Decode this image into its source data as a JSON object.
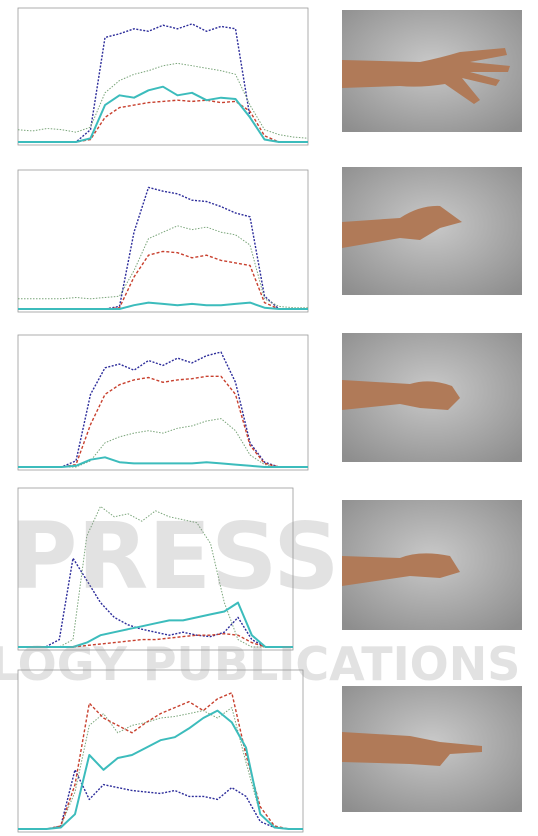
{
  "chart_data": [
    {
      "type": "line",
      "xlim": [
        0,
        20
      ],
      "ylim": [
        0,
        100
      ],
      "x": [
        0,
        1,
        2,
        3,
        4,
        5,
        6,
        7,
        8,
        9,
        10,
        11,
        12,
        13,
        14,
        15,
        16,
        17,
        18,
        19,
        20
      ],
      "series": [
        {
          "color": "#2c2c9a",
          "values": [
            0,
            0,
            0,
            0,
            0,
            10,
            85,
            88,
            92,
            90,
            95,
            92,
            96,
            90,
            94,
            92,
            20,
            2,
            0,
            0,
            0
          ]
        },
        {
          "color": "#7aa57a",
          "values": [
            10,
            9,
            11,
            10,
            8,
            12,
            40,
            50,
            55,
            58,
            62,
            64,
            62,
            60,
            58,
            55,
            30,
            10,
            6,
            4,
            3
          ]
        },
        {
          "color": "#c8402e",
          "values": [
            0,
            0,
            0,
            0,
            0,
            2,
            20,
            28,
            30,
            32,
            33,
            34,
            33,
            34,
            32,
            33,
            25,
            5,
            0,
            0,
            0
          ]
        },
        {
          "color": "#3cbcbc",
          "values": [
            0,
            0,
            0,
            0,
            0,
            3,
            30,
            38,
            36,
            42,
            45,
            38,
            40,
            34,
            36,
            35,
            20,
            2,
            0,
            0,
            0
          ]
        }
      ]
    },
    {
      "type": "line",
      "xlim": [
        0,
        20
      ],
      "ylim": [
        0,
        100
      ],
      "x": [
        0,
        1,
        2,
        3,
        4,
        5,
        6,
        7,
        8,
        9,
        10,
        11,
        12,
        13,
        14,
        15,
        16,
        17,
        18,
        19,
        20
      ],
      "series": [
        {
          "color": "#2c2c9a",
          "values": [
            0,
            0,
            0,
            0,
            0,
            0,
            0,
            2,
            60,
            95,
            92,
            90,
            85,
            84,
            80,
            75,
            72,
            10,
            0,
            0,
            0
          ]
        },
        {
          "color": "#7aa57a",
          "values": [
            8,
            8,
            8,
            8,
            9,
            8,
            9,
            10,
            30,
            55,
            60,
            65,
            62,
            64,
            60,
            58,
            50,
            8,
            2,
            1,
            1
          ]
        },
        {
          "color": "#c8402e",
          "values": [
            0,
            0,
            0,
            0,
            0,
            0,
            0,
            1,
            25,
            42,
            45,
            44,
            40,
            42,
            38,
            36,
            34,
            5,
            0,
            0,
            0
          ]
        },
        {
          "color": "#3cbcbc",
          "values": [
            0,
            0,
            0,
            0,
            0,
            0,
            0,
            0,
            3,
            5,
            4,
            3,
            4,
            3,
            3,
            4,
            5,
            1,
            0,
            0,
            0
          ]
        }
      ]
    },
    {
      "type": "line",
      "xlim": [
        0,
        20
      ],
      "ylim": [
        0,
        100
      ],
      "x": [
        0,
        1,
        2,
        3,
        4,
        5,
        6,
        7,
        8,
        9,
        10,
        11,
        12,
        13,
        14,
        15,
        16,
        17,
        18,
        19,
        20
      ],
      "series": [
        {
          "color": "#2c2c9a",
          "values": [
            0,
            0,
            0,
            0,
            5,
            60,
            82,
            85,
            80,
            88,
            84,
            90,
            86,
            92,
            95,
            70,
            20,
            4,
            0,
            0,
            0
          ]
        },
        {
          "color": "#7aa57a",
          "values": [
            0,
            0,
            0,
            0,
            0,
            5,
            20,
            25,
            28,
            30,
            28,
            32,
            34,
            38,
            40,
            30,
            10,
            2,
            0,
            0,
            0
          ]
        },
        {
          "color": "#c8402e",
          "values": [
            0,
            0,
            0,
            0,
            2,
            35,
            60,
            68,
            72,
            74,
            70,
            72,
            73,
            75,
            75,
            60,
            18,
            3,
            0,
            0,
            0
          ]
        },
        {
          "color": "#3cbcbc",
          "values": [
            0,
            0,
            0,
            0,
            1,
            6,
            8,
            4,
            3,
            3,
            3,
            3,
            3,
            4,
            3,
            2,
            1,
            0,
            0,
            0,
            0
          ]
        }
      ]
    },
    {
      "type": "line",
      "xlim": [
        0,
        20
      ],
      "ylim": [
        0,
        100
      ],
      "x": [
        0,
        1,
        2,
        3,
        4,
        5,
        6,
        7,
        8,
        9,
        10,
        11,
        12,
        13,
        14,
        15,
        16,
        17,
        18,
        19,
        20
      ],
      "series": [
        {
          "color": "#2c2c9a",
          "values": [
            0,
            0,
            0,
            5,
            60,
            45,
            30,
            20,
            15,
            12,
            10,
            8,
            10,
            8,
            7,
            10,
            20,
            5,
            0,
            0,
            0
          ]
        },
        {
          "color": "#7aa57a",
          "values": [
            0,
            0,
            0,
            0,
            5,
            75,
            95,
            88,
            90,
            85,
            92,
            88,
            86,
            84,
            70,
            30,
            5,
            0,
            0,
            0,
            0
          ]
        },
        {
          "color": "#c8402e",
          "values": [
            0,
            0,
            0,
            0,
            0,
            1,
            2,
            3,
            4,
            5,
            5,
            6,
            7,
            8,
            8,
            9,
            8,
            3,
            0,
            0,
            0
          ]
        },
        {
          "color": "#3cbcbc",
          "values": [
            0,
            0,
            0,
            0,
            0,
            3,
            8,
            10,
            12,
            14,
            16,
            18,
            18,
            20,
            22,
            24,
            30,
            8,
            0,
            0,
            0
          ]
        }
      ]
    },
    {
      "type": "line",
      "xlim": [
        0,
        20
      ],
      "ylim": [
        0,
        100
      ],
      "x": [
        0,
        1,
        2,
        3,
        4,
        5,
        6,
        7,
        8,
        9,
        10,
        11,
        12,
        13,
        14,
        15,
        16,
        17,
        18,
        19,
        20
      ],
      "series": [
        {
          "color": "#2c2c9a",
          "values": [
            0,
            0,
            0,
            2,
            40,
            20,
            30,
            28,
            26,
            25,
            24,
            26,
            22,
            22,
            20,
            28,
            22,
            5,
            1,
            0,
            0
          ]
        },
        {
          "color": "#7aa57a",
          "values": [
            0,
            0,
            0,
            2,
            25,
            70,
            78,
            65,
            70,
            72,
            75,
            76,
            78,
            80,
            75,
            82,
            45,
            10,
            1,
            0,
            0
          ]
        },
        {
          "color": "#c8402e",
          "values": [
            0,
            0,
            0,
            2,
            30,
            85,
            75,
            70,
            65,
            72,
            78,
            82,
            86,
            80,
            88,
            92,
            50,
            15,
            2,
            0,
            0
          ]
        },
        {
          "color": "#3cbcbc",
          "values": [
            0,
            0,
            0,
            1,
            10,
            50,
            40,
            48,
            50,
            55,
            60,
            62,
            68,
            75,
            80,
            72,
            55,
            10,
            1,
            0,
            0
          ]
        }
      ]
    }
  ],
  "watermark": [
    "PRESS",
    "LOGY PUBLICATIONS"
  ]
}
